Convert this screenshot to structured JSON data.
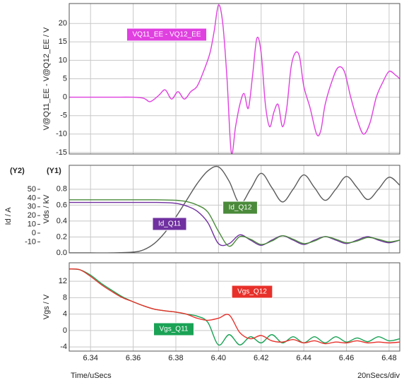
{
  "chart_data": [
    {
      "type": "line",
      "ylabel": "V@Q11_EE - V@Q12_EE / V",
      "xlim": [
        6.33,
        6.485
      ],
      "ylim": [
        -15.4,
        25.4
      ],
      "yticks": [
        -15,
        -10,
        -5,
        0,
        5,
        10,
        15,
        20
      ],
      "grid": true,
      "x": [
        6.33,
        6.34,
        6.35,
        6.36,
        6.365,
        6.368,
        6.372,
        6.375,
        6.378,
        6.381,
        6.384,
        6.387,
        6.39,
        6.393,
        6.396,
        6.398,
        6.4,
        6.402,
        6.404,
        6.406,
        6.408,
        6.41,
        6.412,
        6.414,
        6.416,
        6.418,
        6.42,
        6.422,
        6.424,
        6.426,
        6.428,
        6.43,
        6.432,
        6.434,
        6.436,
        6.438,
        6.44,
        6.443,
        6.446,
        6.448,
        6.45,
        6.453,
        6.456,
        6.459,
        6.462,
        6.465,
        6.468,
        6.471,
        6.474,
        6.477,
        6.48,
        6.483,
        6.485
      ],
      "series": [
        {
          "name": "VQ11_EE - VQ12_EE",
          "color": "#e040e0",
          "values": [
            0,
            0,
            0,
            0,
            -0.3,
            -1.2,
            0.5,
            2,
            -0.5,
            1.5,
            -0.5,
            1.5,
            3,
            7,
            12,
            18,
            25,
            20,
            5,
            -15,
            -8,
            -2,
            1,
            -3,
            6,
            16,
            12,
            -2,
            -8,
            -4,
            -2,
            -8,
            -3,
            8,
            12,
            11,
            3,
            -3,
            -10,
            -9,
            -2,
            4,
            8,
            7,
            0,
            -6,
            -10,
            -7,
            0,
            4,
            7,
            6,
            5
          ]
        }
      ]
    },
    {
      "type": "line",
      "ylabel": "Vds / kV",
      "y2label": "Id / A",
      "y_tag": "(Y1)",
      "y2_tag": "(Y2)",
      "xlim": [
        6.33,
        6.485
      ],
      "ylim": [
        0,
        1.1
      ],
      "yticks": [
        {
          "value": 0,
          "label": "0.0"
        },
        {
          "value": 0.2,
          "label": "0.2"
        },
        {
          "value": 0.4,
          "label": "0.4"
        },
        {
          "value": 0.6,
          "label": "0.6"
        },
        {
          "value": 0.8,
          "label": "0.8"
        }
      ],
      "y2lim": [
        -22.6,
        77.4
      ],
      "y2ticks": [
        -10,
        0,
        10,
        20,
        30,
        40,
        50
      ],
      "grid": true,
      "x": [
        6.33,
        6.34,
        6.35,
        6.36,
        6.365,
        6.37,
        6.375,
        6.38,
        6.385,
        6.39,
        6.395,
        6.4,
        6.405,
        6.41,
        6.415,
        6.42,
        6.425,
        6.43,
        6.435,
        6.44,
        6.445,
        6.45,
        6.455,
        6.46,
        6.465,
        6.47,
        6.475,
        6.48,
        6.485
      ],
      "series": [
        {
          "color": "#5a5a5a",
          "values": [
            0,
            0,
            0,
            0.01,
            0.04,
            0.12,
            0.26,
            0.45,
            0.66,
            0.87,
            1.03,
            1.08,
            0.9,
            0.62,
            0.8,
            1.0,
            0.82,
            0.64,
            0.8,
            0.98,
            0.82,
            0.66,
            0.8,
            0.96,
            0.82,
            0.67,
            0.8,
            0.95,
            0.85
          ]
        },
        {
          "name": "Id_Q11",
          "color": "#7030a0",
          "axis": "y2",
          "values": [
            35,
            35,
            35,
            35,
            35,
            35,
            34.8,
            34,
            31,
            25,
            12,
            -12,
            -12,
            -2,
            -8,
            -14,
            -8,
            -3,
            -8,
            -13,
            -8,
            -4,
            -8,
            -12,
            -8,
            -4,
            -8,
            -11,
            -8
          ]
        },
        {
          "name": "Id_Q12",
          "color": "#4a8a3a",
          "axis": "y2",
          "values": [
            38,
            38,
            38,
            38,
            38,
            38,
            37.8,
            37.5,
            36,
            32,
            24,
            2,
            -15,
            -4,
            -7,
            -13,
            -9,
            -3,
            -7,
            -12,
            -9,
            -4,
            -7,
            -11,
            -9,
            -5,
            -7,
            -10,
            -8
          ]
        }
      ]
    },
    {
      "type": "line",
      "ylabel": "Vgs / V",
      "xlabel": "Time/uSecs",
      "scale_note": "20nSecs/div",
      "xlim": [
        6.33,
        6.485
      ],
      "ylim": [
        -5,
        16.5
      ],
      "yticks": [
        -4,
        0,
        4,
        8,
        12
      ],
      "grid": true,
      "xticks": [
        {
          "value": 6.34,
          "label": "6.34"
        },
        {
          "value": 6.36,
          "label": "6.36"
        },
        {
          "value": 6.38,
          "label": "6.38"
        },
        {
          "value": 6.4,
          "label": "6.40"
        },
        {
          "value": 6.42,
          "label": "6.42"
        },
        {
          "value": 6.44,
          "label": "6.44"
        },
        {
          "value": 6.46,
          "label": "6.46"
        },
        {
          "value": 6.48,
          "label": "6.48"
        }
      ],
      "x": [
        6.33,
        6.335,
        6.34,
        6.345,
        6.35,
        6.355,
        6.36,
        6.365,
        6.37,
        6.375,
        6.38,
        6.385,
        6.39,
        6.395,
        6.4,
        6.405,
        6.41,
        6.415,
        6.42,
        6.425,
        6.43,
        6.435,
        6.44,
        6.445,
        6.45,
        6.455,
        6.46,
        6.465,
        6.47,
        6.475,
        6.48,
        6.485
      ],
      "series": [
        {
          "name": "Vgs_Q11",
          "color": "#1aa255",
          "values": [
            15,
            14.8,
            13.5,
            11.5,
            9.8,
            8.2,
            7,
            6,
            5.2,
            4.8,
            4.5,
            4,
            3.5,
            2,
            -3.5,
            -1,
            -3.5,
            -1.5,
            -3,
            -1,
            -3,
            -1.5,
            -3,
            -1.5,
            -3,
            -1.5,
            -2.8,
            -1.8,
            -2.7,
            -1.5,
            -2.5,
            -2
          ]
        },
        {
          "name": "Vgs_Q12",
          "color": "#e8302a",
          "values": [
            15,
            14.8,
            13.2,
            11.2,
            9.5,
            8,
            7,
            6,
            5.2,
            4.8,
            4.5,
            4,
            3,
            2.5,
            3,
            3.8,
            -0.5,
            -2,
            -1.2,
            -2.5,
            -2.8,
            -2.2,
            -3,
            -2.5,
            -3.2,
            -2.8,
            -3,
            -2.5,
            -3,
            -2.8,
            -3,
            -2.8
          ]
        }
      ]
    }
  ]
}
